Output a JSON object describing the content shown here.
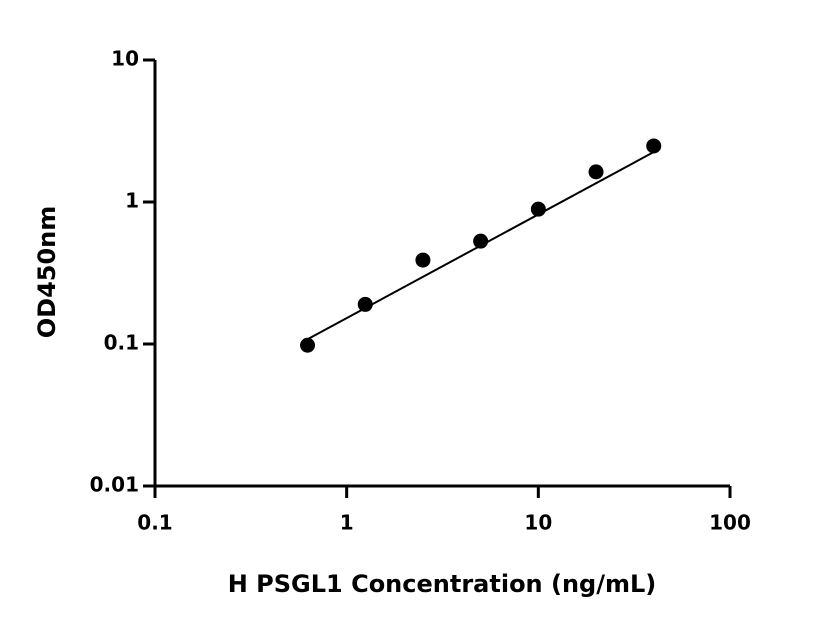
{
  "chart_data": {
    "type": "scatter",
    "x_label": "H PSGL1 Concentration (ng/mL)",
    "y_label": "OD450nm",
    "x": [
      0.625,
      1.25,
      2.5,
      5,
      10,
      20,
      40
    ],
    "values": [
      0.098,
      0.19,
      0.39,
      0.53,
      0.89,
      1.63,
      2.48
    ],
    "color": "#000000",
    "fit_line": {
      "x": [
        0.625,
        40
      ],
      "values": [
        0.108,
        2.25
      ]
    },
    "x_log": true,
    "y_log": true,
    "xlim": [
      0.1,
      100
    ],
    "xticks": [
      0.1,
      1,
      10,
      100
    ],
    "ylim": [
      0.01,
      10
    ],
    "yticks": [
      0.01,
      0.1,
      1,
      10
    ]
  }
}
